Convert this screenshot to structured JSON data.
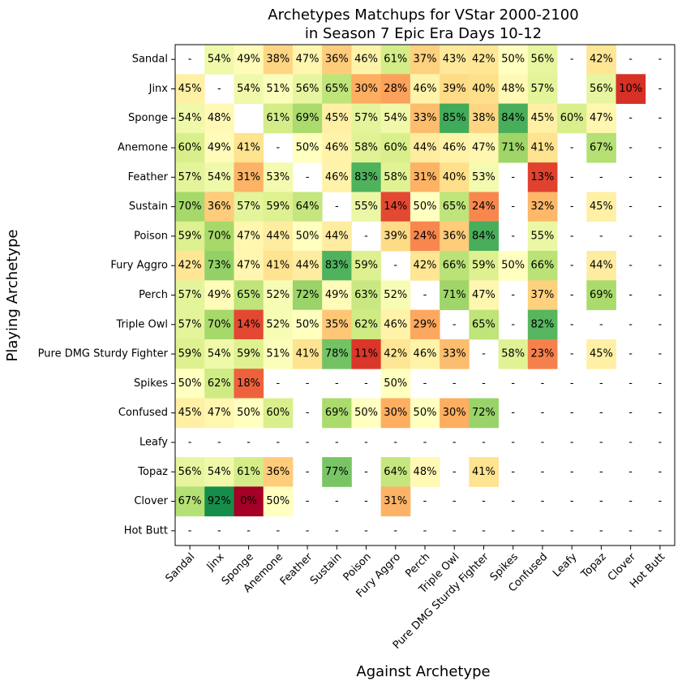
{
  "chart_data": {
    "type": "heatmap",
    "title": "Archetypes Matchups for VStar 2000-2100",
    "subtitle": "in Season 7 Epic Era Days 10-12",
    "xlabel": "Against Archetype",
    "ylabel": "Playing Archetype",
    "color_scale": "RdYlGn",
    "value_range": [
      0,
      100
    ],
    "empty_marker": "-",
    "grid": false,
    "categories": [
      "Sandal",
      "Jinx",
      "Sponge",
      "Anemone",
      "Feather",
      "Sustain",
      "Poison",
      "Fury Aggro",
      "Perch",
      "Triple Owl",
      "Pure DMG Sturdy Fighter",
      "Spikes",
      "Confused",
      "Leafy",
      "Topaz",
      "Clover",
      "Hot Butt"
    ],
    "values": [
      [
        null,
        54,
        49,
        38,
        47,
        36,
        46,
        61,
        37,
        43,
        42,
        50,
        56,
        null,
        42,
        null,
        null
      ],
      [
        45,
        null,
        54,
        51,
        56,
        65,
        30,
        28,
        46,
        39,
        40,
        48,
        57,
        "",
        56,
        10,
        null
      ],
      [
        54,
        48,
        "",
        61,
        69,
        45,
        57,
        54,
        33,
        85,
        38,
        84,
        45,
        60,
        47,
        null,
        null
      ],
      [
        60,
        49,
        41,
        null,
        50,
        46,
        58,
        60,
        44,
        46,
        47,
        71,
        41,
        null,
        67,
        null,
        null
      ],
      [
        57,
        54,
        31,
        53,
        null,
        46,
        83,
        58,
        31,
        40,
        53,
        null,
        13,
        null,
        null,
        null,
        null
      ],
      [
        70,
        36,
        57,
        59,
        64,
        null,
        55,
        14,
        50,
        65,
        24,
        null,
        32,
        null,
        45,
        null,
        null
      ],
      [
        59,
        70,
        47,
        44,
        50,
        44,
        null,
        39,
        24,
        36,
        84,
        null,
        55,
        null,
        null,
        null,
        null
      ],
      [
        42,
        73,
        47,
        41,
        44,
        83,
        59,
        null,
        42,
        66,
        59,
        50,
        66,
        null,
        44,
        null,
        null
      ],
      [
        57,
        49,
        65,
        52,
        72,
        49,
        63,
        52,
        null,
        71,
        47,
        null,
        37,
        null,
        69,
        null,
        null
      ],
      [
        57,
        70,
        14,
        52,
        50,
        35,
        62,
        46,
        29,
        null,
        65,
        null,
        82,
        null,
        null,
        null,
        null
      ],
      [
        59,
        54,
        59,
        51,
        41,
        78,
        11,
        42,
        46,
        33,
        null,
        58,
        23,
        null,
        45,
        null,
        null
      ],
      [
        50,
        62,
        18,
        null,
        null,
        null,
        null,
        50,
        null,
        null,
        null,
        null,
        null,
        null,
        null,
        null,
        null
      ],
      [
        45,
        47,
        50,
        60,
        null,
        69,
        50,
        30,
        50,
        30,
        72,
        null,
        null,
        null,
        null,
        null,
        null
      ],
      [
        null,
        null,
        null,
        null,
        null,
        null,
        null,
        null,
        null,
        null,
        null,
        null,
        null,
        null,
        null,
        null,
        null
      ],
      [
        56,
        54,
        61,
        36,
        null,
        77,
        null,
        64,
        48,
        null,
        41,
        null,
        null,
        null,
        null,
        null,
        null
      ],
      [
        67,
        92,
        0,
        50,
        null,
        null,
        null,
        31,
        null,
        null,
        null,
        null,
        null,
        null,
        null,
        null,
        null
      ],
      [
        null,
        null,
        null,
        null,
        null,
        null,
        null,
        null,
        null,
        null,
        null,
        null,
        null,
        null,
        null,
        null,
        null
      ]
    ]
  }
}
